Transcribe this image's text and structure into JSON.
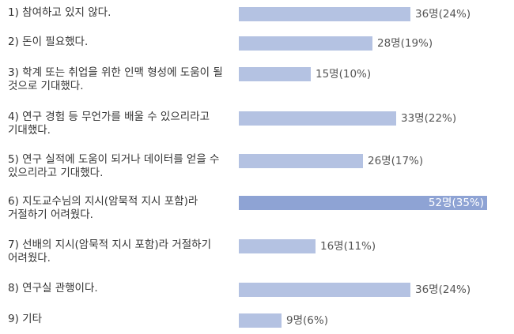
{
  "colors": {
    "bar": "#b4c2e2",
    "bar_highlight": "#8ea3d4",
    "label_text": "#333333",
    "value_text": "#555555",
    "value_text_inside": "#ffffff"
  },
  "chart_data": {
    "type": "bar",
    "orientation": "horizontal",
    "categories": [
      "1) 참여하고 있지 않다.",
      "2) 돈이 필요했다.",
      "3) 학계 또는 취업을 위한 인맥 형성에 도움이 될 것으로 기대했다.",
      "4) 연구 경험 등 무언가를 배울 수 있으리라고 기대했다.",
      "5) 연구 실적에 도움이 되거나 데이터를 얻을 수 있으리라고 기대했다.",
      "6) 지도교수님의 지시(암묵적 지시 포함)라 거절하기 어려웠다.",
      "7) 선배의 지시(암묵적 지시 포함)라 거절하기 어려웠다.",
      "8) 연구실 관행이다.",
      "9) 기타"
    ],
    "values": [
      36,
      28,
      15,
      33,
      26,
      52,
      16,
      36,
      9
    ],
    "value_labels": [
      "36명(24%)",
      "28명(19%)",
      "15명(10%)",
      "33명(22%)",
      "26명(17%)",
      "52명(35%)",
      "16명(11%)",
      "36명(24%)",
      "9명(6%)"
    ],
    "highlight_index": 5,
    "xlim": [
      0,
      52
    ],
    "grid": false,
    "title": "",
    "xlabel": "",
    "ylabel": ""
  }
}
